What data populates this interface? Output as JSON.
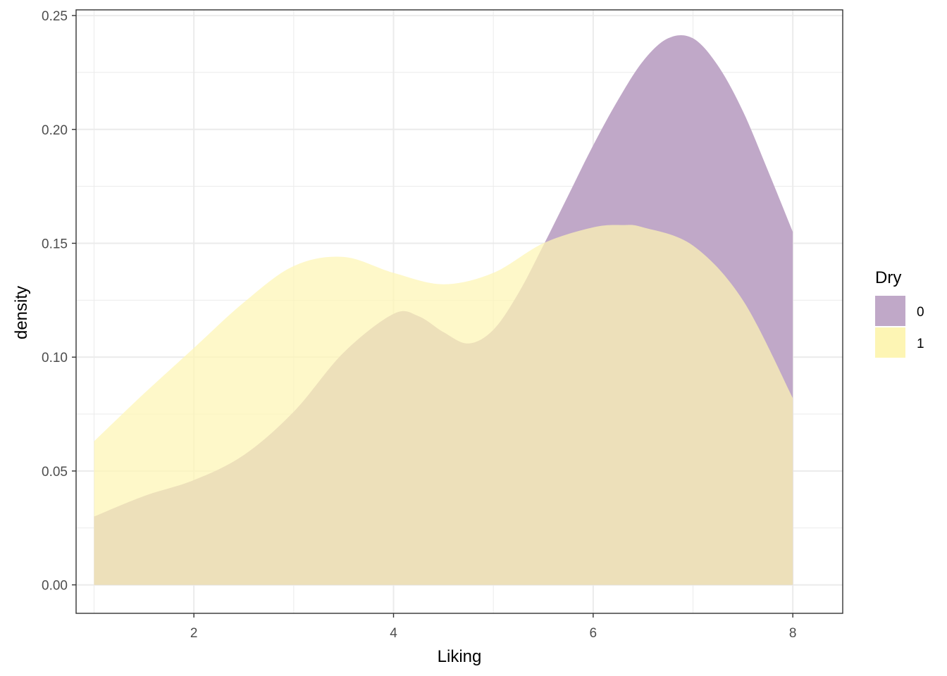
{
  "chart_data": {
    "type": "area",
    "title": "",
    "xlabel": "Liking",
    "ylabel": "density",
    "xlim": [
      0.82,
      8.5
    ],
    "ylim": [
      -0.0125,
      0.2525
    ],
    "x_ticks": [
      2,
      4,
      6,
      8
    ],
    "y_ticks": [
      "0.00",
      "0.05",
      "0.10",
      "0.15",
      "0.20",
      "0.25"
    ],
    "grid": true,
    "legend": {
      "title": "Dry",
      "placement": "right"
    },
    "series": [
      {
        "name": "0",
        "color": "#c0a8c8",
        "x": [
          1,
          1.5,
          2,
          2.5,
          3,
          3.5,
          4,
          4.25,
          4.5,
          4.75,
          5,
          5.25,
          5.5,
          5.75,
          6,
          6.25,
          6.5,
          6.75,
          7,
          7.25,
          7.5,
          7.75,
          8
        ],
        "y": [
          0.03,
          0.039,
          0.046,
          0.057,
          0.076,
          0.102,
          0.119,
          0.118,
          0.111,
          0.106,
          0.112,
          0.128,
          0.149,
          0.171,
          0.193,
          0.213,
          0.23,
          0.24,
          0.24,
          0.228,
          0.208,
          0.182,
          0.155
        ]
      },
      {
        "name": "1",
        "color": "#fdf5b4",
        "x": [
          1,
          1.5,
          2,
          2.5,
          3,
          3.5,
          4,
          4.5,
          5,
          5.5,
          6,
          6.3,
          6.5,
          7,
          7.5,
          8
        ],
        "y": [
          0.063,
          0.084,
          0.104,
          0.124,
          0.14,
          0.144,
          0.137,
          0.132,
          0.137,
          0.15,
          0.157,
          0.158,
          0.157,
          0.149,
          0.125,
          0.082
        ]
      }
    ]
  },
  "colors": {
    "overlap": "#d5bf8e",
    "grid": "#ebebeb",
    "panel_border": "#333333"
  }
}
